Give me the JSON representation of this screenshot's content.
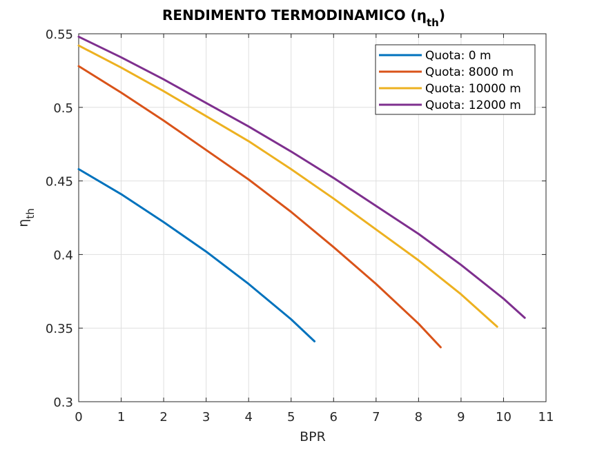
{
  "chart_data": {
    "type": "line",
    "title": "RENDIMENTO TERMODINAMICO (η",
    "title_subscript": "th",
    "title_close": ")",
    "xlabel": "BPR",
    "ylabel": "η",
    "ylabel_subscript": "th",
    "xlim": [
      0,
      11
    ],
    "ylim": [
      0.3,
      0.55
    ],
    "xticks": [
      0,
      1,
      2,
      3,
      4,
      5,
      6,
      7,
      8,
      9,
      10,
      11
    ],
    "xtick_labels": [
      "0",
      "1",
      "2",
      "3",
      "4",
      "5",
      "6",
      "7",
      "8",
      "9",
      "10",
      "11"
    ],
    "yticks": [
      0.3,
      0.35,
      0.4,
      0.45,
      0.5,
      0.55
    ],
    "ytick_labels": [
      "0.3",
      "0.35",
      "0.4",
      "0.45",
      "0.5",
      "0.55"
    ],
    "grid": true,
    "legend_position": "top-right",
    "series": [
      {
        "name": "Quota: 0 m",
        "color": "#0072BD",
        "x": [
          0,
          1,
          2,
          3,
          4,
          5,
          5.55
        ],
        "y": [
          0.458,
          0.441,
          0.422,
          0.402,
          0.38,
          0.356,
          0.341
        ]
      },
      {
        "name": "Quota: 8000 m",
        "color": "#D95319",
        "x": [
          0,
          1,
          2,
          3,
          4,
          5,
          6,
          7,
          8,
          8.52
        ],
        "y": [
          0.528,
          0.51,
          0.491,
          0.471,
          0.451,
          0.429,
          0.405,
          0.38,
          0.353,
          0.337
        ]
      },
      {
        "name": "Quota: 10000 m",
        "color": "#EDB120",
        "x": [
          0,
          1,
          2,
          3,
          4,
          5,
          6,
          7,
          8,
          9,
          9.85
        ],
        "y": [
          0.542,
          0.527,
          0.511,
          0.494,
          0.477,
          0.458,
          0.438,
          0.417,
          0.396,
          0.373,
          0.351
        ]
      },
      {
        "name": "Quota: 12000 m",
        "color": "#7E2F8E",
        "x": [
          0,
          1,
          2,
          3,
          4,
          5,
          6,
          7,
          8,
          9,
          10,
          10.5
        ],
        "y": [
          0.548,
          0.534,
          0.519,
          0.503,
          0.487,
          0.47,
          0.452,
          0.433,
          0.414,
          0.393,
          0.37,
          0.357
        ]
      }
    ]
  }
}
